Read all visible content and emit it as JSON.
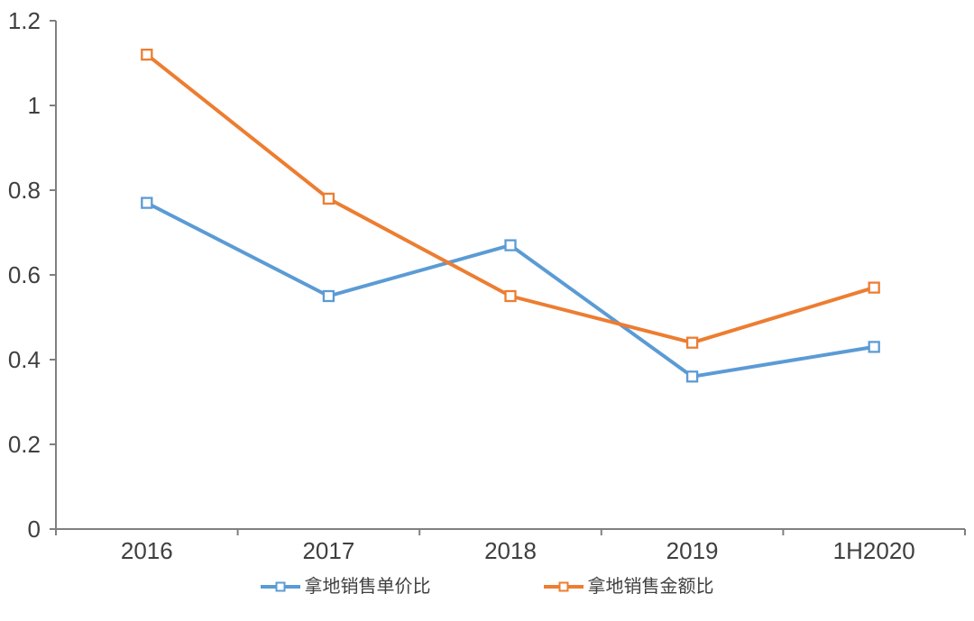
{
  "chart_data": {
    "type": "line",
    "categories": [
      "2016",
      "2017",
      "2018",
      "2019",
      "1H2020"
    ],
    "series": [
      {
        "name": "拿地销售单价比",
        "slug": "land-sales-unit-price-ratio",
        "color": "#5B9BD5",
        "values": [
          0.77,
          0.55,
          0.67,
          0.36,
          0.43
        ]
      },
      {
        "name": "拿地销售金额比",
        "slug": "land-sales-amount-ratio",
        "color": "#ED7D31",
        "values": [
          1.12,
          0.78,
          0.55,
          0.44,
          0.57
        ]
      }
    ],
    "title": "",
    "xlabel": "",
    "ylabel": "",
    "ylim": [
      0,
      1.2
    ],
    "y_ticks": [
      0,
      0.2,
      0.4,
      0.6,
      0.8,
      1,
      1.2
    ],
    "y_tick_labels": [
      "0",
      "0.2",
      "0.4",
      "0.6",
      "0.8",
      "1",
      "1.2"
    ],
    "grid": false,
    "legend_position": "bottom",
    "marker": "hollow-square",
    "axis_color": "#808080",
    "text_color": "#3f3f3f",
    "background": "#ffffff"
  }
}
